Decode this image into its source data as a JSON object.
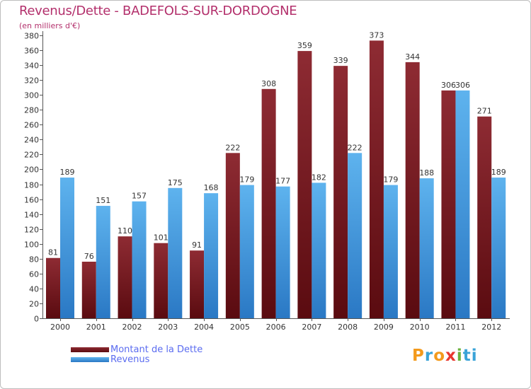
{
  "chart_data": {
    "type": "bar",
    "title": "Revenus/Dette - BADEFOLS-SUR-DORDOGNE",
    "subtitle": "(en milliers d'€)",
    "categories": [
      "2000",
      "2001",
      "2002",
      "2003",
      "2004",
      "2005",
      "2006",
      "2007",
      "2008",
      "2009",
      "2010",
      "2011",
      "2012"
    ],
    "series": [
      {
        "name": "Montant de la Dette",
        "color": "#7a1e24",
        "values": [
          81,
          76,
          110,
          101,
          91,
          222,
          308,
          359,
          339,
          373,
          344,
          306,
          271
        ]
      },
      {
        "name": "Revenus",
        "color": "#3d9be0",
        "values": [
          189,
          151,
          157,
          175,
          168,
          179,
          177,
          182,
          222,
          179,
          188,
          306,
          189
        ]
      }
    ],
    "ylim": [
      0,
      380
    ],
    "ytick_step": 20,
    "grid": false,
    "legend": "bottom-left"
  },
  "brand": {
    "letters": [
      "P",
      "r",
      "o",
      "x",
      "i",
      "ti"
    ]
  }
}
